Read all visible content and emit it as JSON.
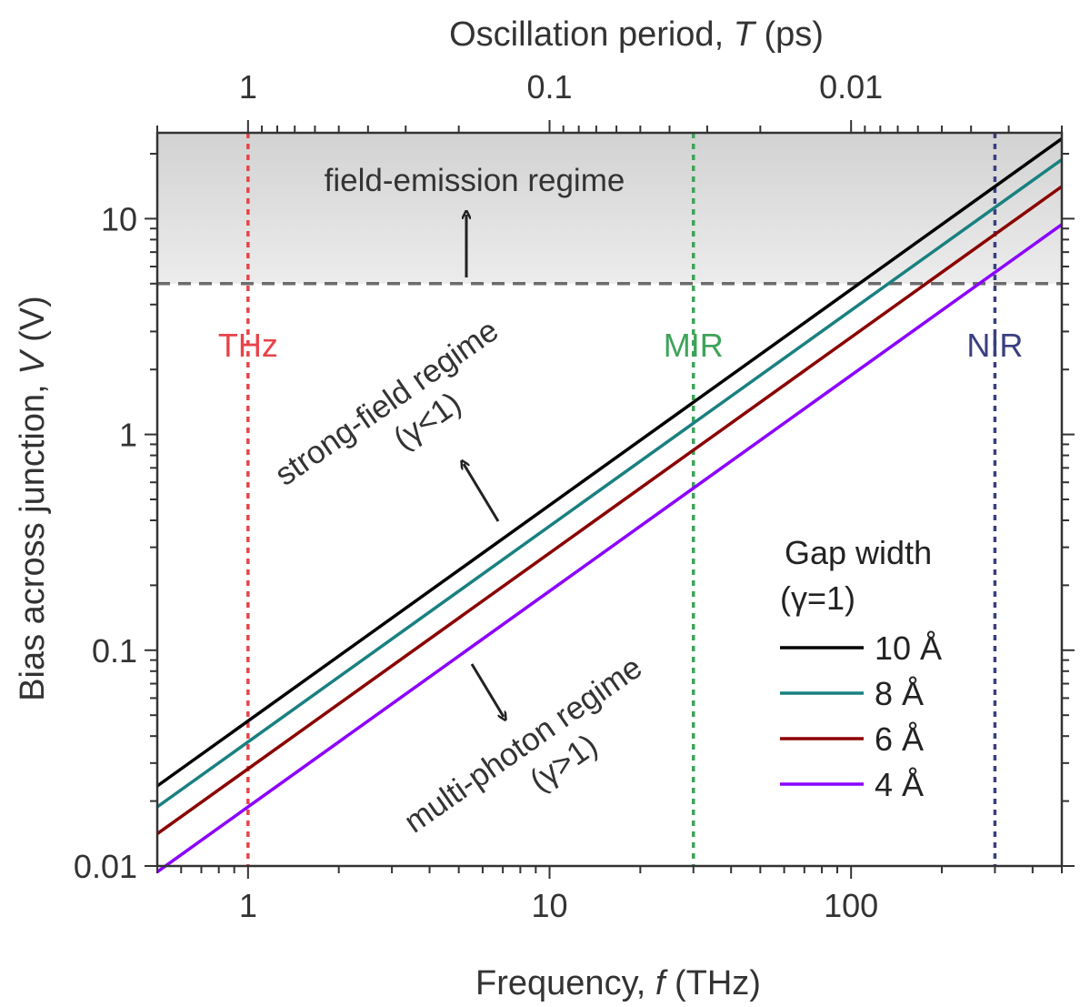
{
  "chart_data": {
    "type": "line",
    "x_scale": "log",
    "y_scale": "log",
    "xlim": [
      0.5,
      500
    ],
    "ylim": [
      0.01,
      25
    ],
    "xlabel_prefix": "Frequency, ",
    "xlabel_var": "f",
    "xlabel_unit": " (THz)",
    "ylabel_prefix": "Bias across junction, ",
    "ylabel_var": "V",
    "ylabel_unit": " (V)",
    "top_label_prefix": "Oscillation period, ",
    "top_label_var": "T",
    "top_label_unit": " (ps)",
    "x_ticks": [
      {
        "value": 1,
        "label": "1"
      },
      {
        "value": 10,
        "label": "10"
      },
      {
        "value": 100,
        "label": "100"
      }
    ],
    "y_ticks": [
      {
        "value": 0.01,
        "label": "0.01"
      },
      {
        "value": 0.1,
        "label": "0.1"
      },
      {
        "value": 1,
        "label": "1"
      },
      {
        "value": 10,
        "label": "10"
      }
    ],
    "top_ticks": [
      {
        "period": 1,
        "label": "1"
      },
      {
        "period": 0.1,
        "label": "0.1"
      },
      {
        "period": 0.01,
        "label": "0.01"
      }
    ],
    "field_emission_threshold": 5,
    "series": [
      {
        "name": "10 Å",
        "color": "#000000",
        "x": [
          0.5,
          500
        ],
        "y": [
          0.0235,
          23.5
        ]
      },
      {
        "name": "8 Å",
        "color": "#1a8080",
        "x": [
          0.5,
          500
        ],
        "y": [
          0.0188,
          18.8
        ]
      },
      {
        "name": "6 Å",
        "color": "#8b0000",
        "x": [
          0.5,
          500
        ],
        "y": [
          0.0141,
          14.1
        ]
      },
      {
        "name": "4 Å",
        "color": "#8b00ff",
        "x": [
          0.5,
          500
        ],
        "y": [
          0.0094,
          9.4
        ]
      }
    ],
    "bands": [
      {
        "label": "THz",
        "x": 1,
        "color": "#e8434a"
      },
      {
        "label": "MIR",
        "x": 30,
        "color": "#3ea35a"
      },
      {
        "label": "NIR",
        "x": 300,
        "color": "#3b3f80"
      }
    ],
    "legend": {
      "title_line1": "Gap width",
      "title_line2": "(γ=1)",
      "placement": "lower-right"
    },
    "annotations": {
      "field_emission": "field-emission regime",
      "strong_field_line1": "strong-field regime",
      "strong_field_line2": "(γ<1)",
      "multi_photon_line1": "multi-photon regime",
      "multi_photon_line2": "(γ>1)"
    }
  }
}
